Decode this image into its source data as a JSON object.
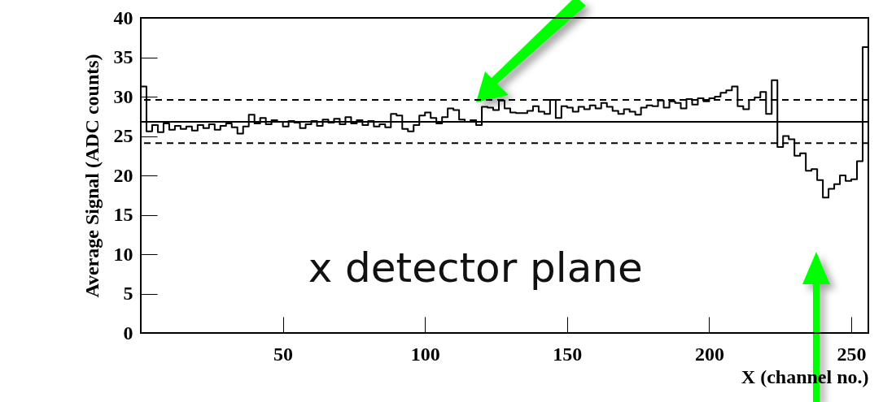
{
  "chart_data": {
    "type": "histogram",
    "xlabel": "X (channel no.)",
    "ylabel": "Average Signal (ADC counts)",
    "annotations": [
      "x detector plane"
    ],
    "bins": [
      0,
      2,
      4,
      6,
      8,
      10,
      12,
      14,
      16,
      18,
      20,
      22,
      24,
      26,
      28,
      30,
      32,
      34,
      36,
      38,
      40,
      42,
      44,
      46,
      48,
      50,
      52,
      54,
      56,
      58,
      60,
      62,
      64,
      66,
      68,
      70,
      72,
      74,
      76,
      78,
      80,
      82,
      84,
      86,
      88,
      90,
      92,
      94,
      96,
      98,
      100,
      102,
      104,
      106,
      108,
      110,
      112,
      114,
      116,
      118,
      120,
      122,
      124,
      126,
      128,
      130,
      132,
      134,
      136,
      138,
      140,
      142,
      144,
      146,
      148,
      150,
      152,
      154,
      156,
      158,
      160,
      162,
      164,
      166,
      168,
      170,
      172,
      174,
      176,
      178,
      180,
      182,
      184,
      186,
      188,
      190,
      192,
      194,
      196,
      198,
      200,
      202,
      204,
      206,
      208,
      210,
      212,
      214,
      216,
      218,
      220,
      222,
      224,
      226,
      228,
      230,
      232,
      234,
      236,
      238,
      240,
      242,
      244,
      246,
      248,
      250,
      252,
      254,
      256
    ],
    "values": [
      31.3,
      25.6,
      26.4,
      25.5,
      26.6,
      25.8,
      26.3,
      25.9,
      26.2,
      25.7,
      26.4,
      26.0,
      26.5,
      25.8,
      26.3,
      26.6,
      26.1,
      25.3,
      26.2,
      27.7,
      26.6,
      27.3,
      26.5,
      27.0,
      26.8,
      26.2,
      26.9,
      26.7,
      26.0,
      26.5,
      26.9,
      26.3,
      27.1,
      26.7,
      27.2,
      26.5,
      27.4,
      26.6,
      27.0,
      26.4,
      26.9,
      26.2,
      26.5,
      26.1,
      27.8,
      27.6,
      25.9,
      25.6,
      26.4,
      27.6,
      28.0,
      27.3,
      26.6,
      27.4,
      28.5,
      28.3,
      27.1,
      26.8,
      27.0,
      26.4,
      28.7,
      28.6,
      28.3,
      29.5,
      28.5,
      28.0,
      27.9,
      27.9,
      28.2,
      28.8,
      28.1,
      27.8,
      29.6,
      27.3,
      28.8,
      28.6,
      28.1,
      28.7,
      28.4,
      28.9,
      28.5,
      29.2,
      28.7,
      28.2,
      27.8,
      28.4,
      28.1,
      27.7,
      28.6,
      28.9,
      28.8,
      29.5,
      28.6,
      29.4,
      29.2,
      28.5,
      29.7,
      29.0,
      29.8,
      29.4,
      29.8,
      30.0,
      30.5,
      30.8,
      31.3,
      28.8,
      28.4,
      29.6,
      29.9,
      30.6,
      27.8,
      32.1,
      23.6,
      25.0,
      24.6,
      22.5,
      22.8,
      20.6,
      20.8,
      19.4,
      17.2,
      18.3,
      18.9,
      20.0,
      19.3,
      19.5,
      21.8,
      36.3
    ],
    "color": "#000000",
    "xlim": [
      0,
      256
    ],
    "ylim": [
      0,
      40
    ],
    "xticks": [
      50,
      100,
      150,
      200,
      250
    ],
    "yticks": [
      0,
      5,
      10,
      15,
      20,
      25,
      30,
      35,
      40
    ],
    "ref_lines": [
      {
        "axis": "y",
        "value": 26.8,
        "line_style": "solid"
      },
      {
        "axis": "y",
        "value": 29.6,
        "line_style": "dashed"
      },
      {
        "axis": "y",
        "value": 24.1,
        "line_style": "dashed"
      }
    ],
    "grid": false
  }
}
